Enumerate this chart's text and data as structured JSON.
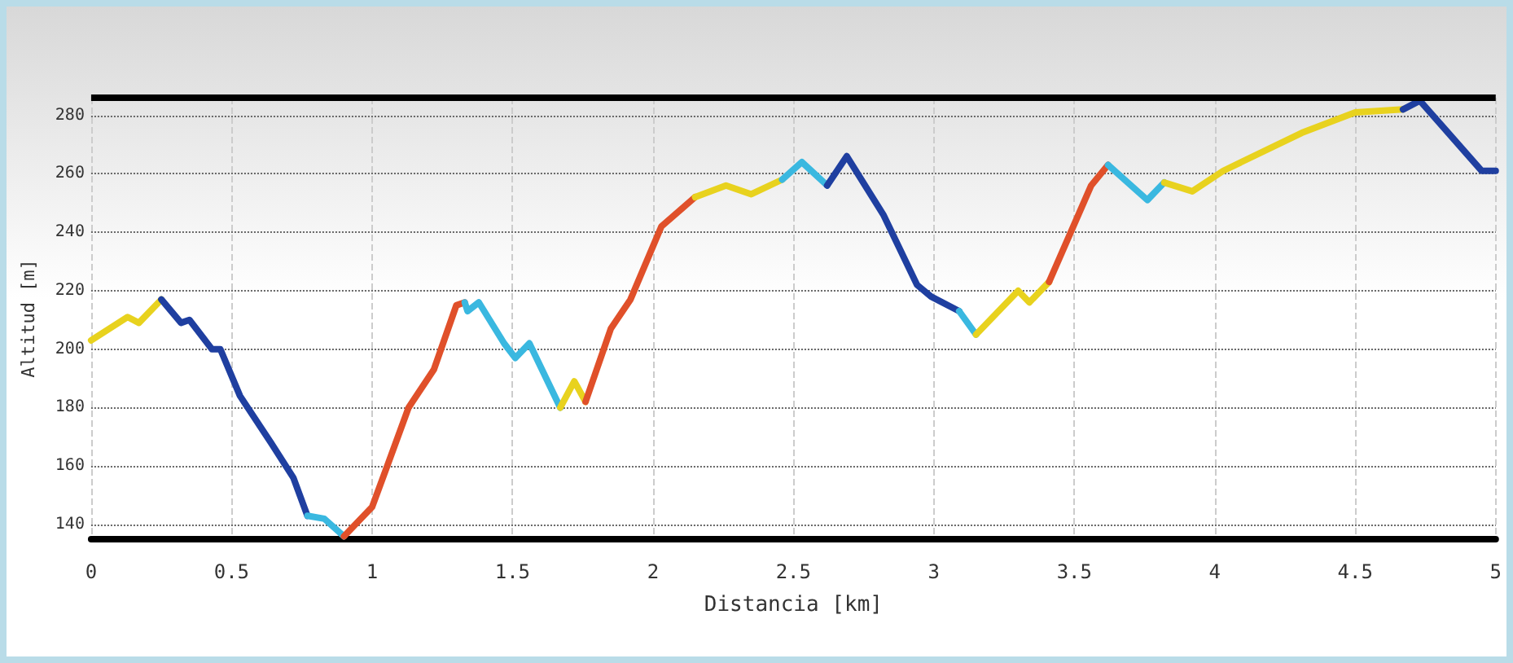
{
  "chart_data": {
    "type": "line",
    "xlabel": "Distancia [km]",
    "ylabel": "Altitud [m]",
    "xlim": [
      0,
      5
    ],
    "xticks": [
      0,
      0.5,
      1,
      1.5,
      2,
      2.5,
      3,
      3.5,
      4,
      4.5,
      5
    ],
    "ylim": [
      135,
      286
    ],
    "yticks": [
      140,
      160,
      180,
      200,
      220,
      240,
      260,
      280
    ],
    "grid": true,
    "line_style": "solid",
    "marker": "none",
    "series": [
      {
        "color": "#e8d21e",
        "x": [
          0,
          0.13,
          0.17,
          0.25
        ],
        "values": [
          203,
          211,
          209,
          217
        ]
      },
      {
        "color": "#1f3fa0",
        "x": [
          0.25,
          0.32,
          0.35,
          0.43,
          0.46,
          0.53,
          0.64,
          0.72,
          0.77
        ],
        "values": [
          217,
          209,
          210,
          200,
          200,
          184,
          168,
          156,
          143
        ]
      },
      {
        "color": "#3ab8e0",
        "x": [
          0.77,
          0.83,
          0.9
        ],
        "values": [
          143,
          142,
          136
        ]
      },
      {
        "color": "#e0502a",
        "x": [
          0.9,
          1.0,
          1.05,
          1.13,
          1.22,
          1.3,
          1.33
        ],
        "values": [
          136,
          146,
          159,
          180,
          193,
          215,
          216
        ]
      },
      {
        "color": "#3ab8e0",
        "x": [
          1.33,
          1.34,
          1.38,
          1.47,
          1.51,
          1.56,
          1.67
        ],
        "values": [
          216,
          213,
          216,
          202,
          197,
          202,
          180
        ]
      },
      {
        "color": "#e8d21e",
        "x": [
          1.67,
          1.72,
          1.76
        ],
        "values": [
          180,
          189,
          182
        ]
      },
      {
        "color": "#e0502a",
        "x": [
          1.76,
          1.85,
          1.92,
          2.03,
          2.15
        ],
        "values": [
          182,
          207,
          217,
          242,
          252
        ]
      },
      {
        "color": "#e8d21e",
        "x": [
          2.15,
          2.26,
          2.35,
          2.46
        ],
        "values": [
          252,
          256,
          253,
          258
        ]
      },
      {
        "color": "#3ab8e0",
        "x": [
          2.46,
          2.53,
          2.62
        ],
        "values": [
          258,
          264,
          256
        ]
      },
      {
        "color": "#1f3fa0",
        "x": [
          2.62,
          2.69,
          2.82,
          2.94,
          2.99,
          3.09
        ],
        "values": [
          256,
          266,
          246,
          222,
          218,
          213
        ]
      },
      {
        "color": "#3ab8e0",
        "x": [
          3.09,
          3.15
        ],
        "values": [
          213,
          205
        ]
      },
      {
        "color": "#e8d21e",
        "x": [
          3.15,
          3.3,
          3.34,
          3.41
        ],
        "values": [
          205,
          220,
          216,
          223
        ]
      },
      {
        "color": "#e0502a",
        "x": [
          3.41,
          3.56,
          3.62
        ],
        "values": [
          223,
          256,
          263
        ]
      },
      {
        "color": "#3ab8e0",
        "x": [
          3.62,
          3.76,
          3.82
        ],
        "values": [
          263,
          251,
          257
        ]
      },
      {
        "color": "#e8d21e",
        "x": [
          3.82,
          3.92,
          4.03,
          4.31,
          4.5,
          4.67
        ],
        "values": [
          257,
          254,
          261,
          274,
          281,
          282
        ]
      },
      {
        "color": "#1f3fa0",
        "x": [
          4.67,
          4.73,
          4.95,
          5
        ],
        "values": [
          282,
          285,
          261,
          261
        ]
      }
    ]
  }
}
